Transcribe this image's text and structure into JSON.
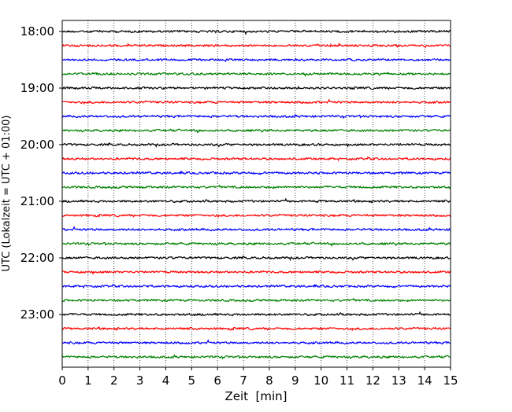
{
  "chart_data": {
    "type": "line",
    "title": "",
    "xlabel": "Zeit  [min]",
    "ylabel": "UTC (Lokalzeit = UTC + 01:00)",
    "xlim": [
      0,
      15
    ],
    "x_ticks": [
      "0",
      "1",
      "2",
      "3",
      "4",
      "5",
      "6",
      "7",
      "8",
      "9",
      "10",
      "11",
      "12",
      "13",
      "14",
      "15"
    ],
    "y_ticks": [
      "18:00",
      "19:00",
      "20:00",
      "21:00",
      "22:00",
      "23:00"
    ],
    "trace_start_times": [
      "18:00",
      "18:15",
      "18:30",
      "18:45",
      "19:00",
      "19:15",
      "19:30",
      "19:45",
      "20:00",
      "20:15",
      "20:30",
      "20:45",
      "21:00",
      "21:15",
      "21:30",
      "21:45",
      "22:00",
      "22:15",
      "22:30",
      "22:45",
      "23:00",
      "23:15",
      "23:30",
      "23:45"
    ],
    "trace_duration_min": 15,
    "trace_colors": [
      "#000000",
      "#ff0000",
      "#0000ff",
      "#008000"
    ],
    "vertical_grid": "dotted, every minute",
    "horizontal_grid": "none",
    "legend": "none"
  }
}
